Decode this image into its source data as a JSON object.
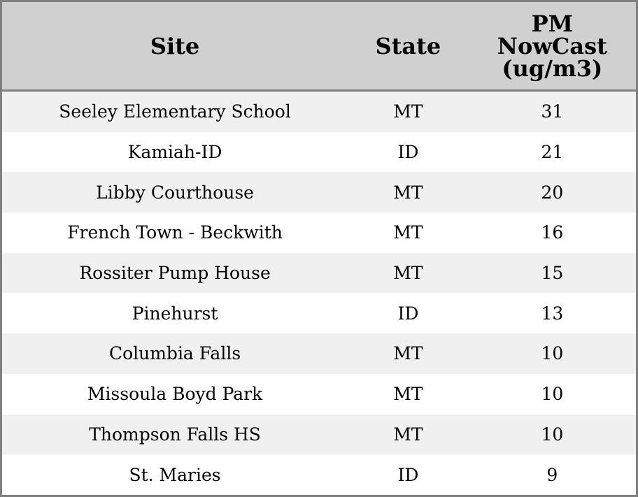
{
  "table": {
    "headers": [
      "Site",
      "State",
      "PM NowCast (ug/m3)"
    ],
    "header_lines": [
      "PM",
      "NowCast",
      "(ug/m3)"
    ],
    "rows": [
      [
        "Seeley Elementary School",
        "MT",
        "31"
      ],
      [
        "Kamiah-ID",
        "ID",
        "21"
      ],
      [
        "Libby Courthouse",
        "MT",
        "20"
      ],
      [
        "French Town - Beckwith",
        "MT",
        "16"
      ],
      [
        "Rossiter Pump House",
        "MT",
        "15"
      ],
      [
        "Pinehurst",
        "ID",
        "13"
      ],
      [
        "Columbia Falls",
        "MT",
        "10"
      ],
      [
        "Missoula Boyd Park",
        "MT",
        "10"
      ],
      [
        "Thompson Falls HS",
        "MT",
        "10"
      ],
      [
        "St. Maries",
        "ID",
        "9"
      ]
    ]
  },
  "colors": {
    "header_bg": "#d0d0d0",
    "stripe_bg": "#f0f0f0",
    "border": "#808080"
  }
}
